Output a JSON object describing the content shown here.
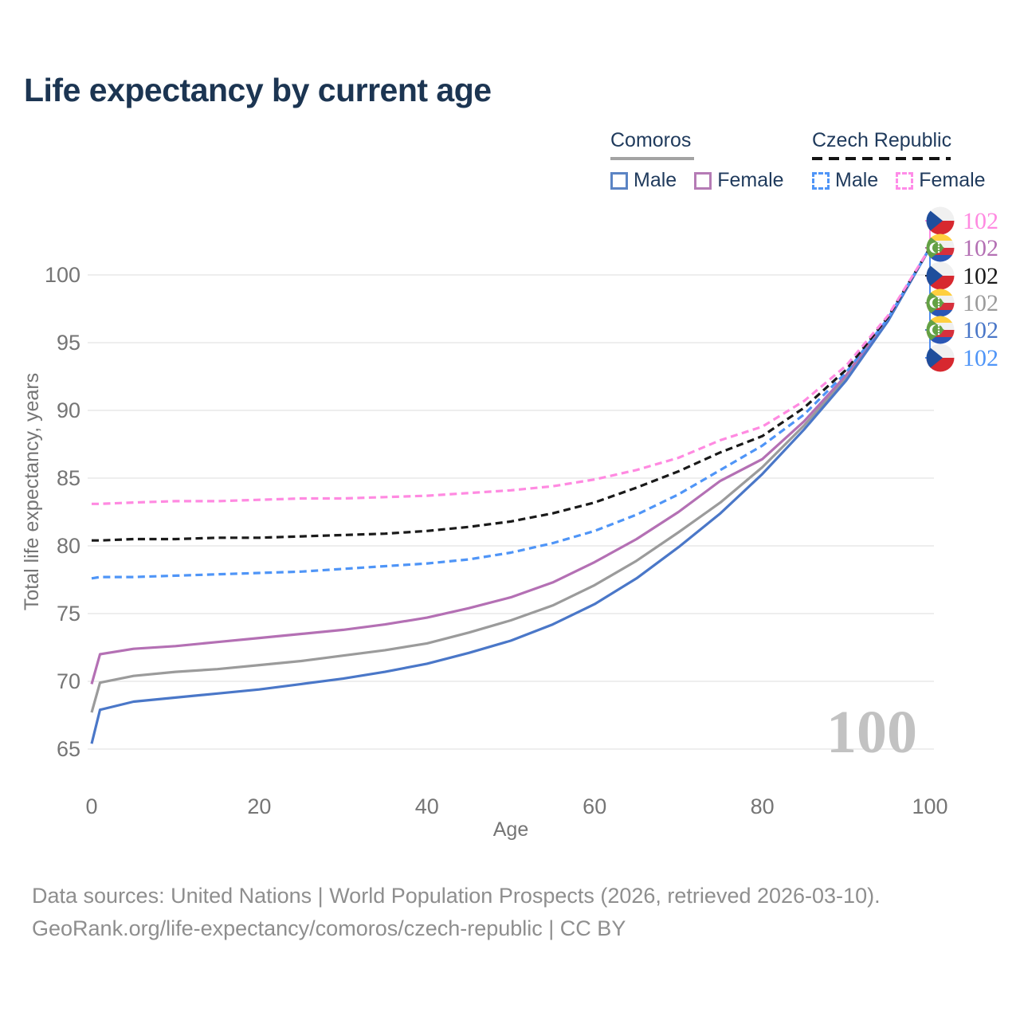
{
  "page": {
    "title": "Life expectancy by current age"
  },
  "legend": {
    "groups": [
      {
        "id": "comoros",
        "title": "Comoros",
        "underline_style": "solid",
        "underline_color": "#a3a3a3",
        "items": [
          {
            "label": "Male",
            "box_color": "#5b84c4",
            "box_style": "solid"
          },
          {
            "label": "Female",
            "box_color": "#b57bb5",
            "box_style": "solid"
          }
        ]
      },
      {
        "id": "czech-republic",
        "title": "Czech Republic",
        "underline_style": "dashed",
        "underline_color": "#141414",
        "items": [
          {
            "label": "Male",
            "box_color": "#4f95f7",
            "box_style": "dashed"
          },
          {
            "label": "Female",
            "box_color": "#ff8ce8",
            "box_style": "dashed"
          }
        ]
      }
    ]
  },
  "chart_data": {
    "type": "line",
    "title": "Life expectancy by current age",
    "xlabel": "Age",
    "ylabel": "Total life expectancy, years",
    "xlim": [
      0,
      100
    ],
    "ylim": [
      64,
      103
    ],
    "x_ticks": [
      0,
      20,
      40,
      60,
      80,
      100
    ],
    "y_ticks": [
      65,
      70,
      75,
      80,
      85,
      90,
      95,
      100
    ],
    "grid": true,
    "ages": [
      0,
      1,
      5,
      10,
      15,
      20,
      25,
      30,
      35,
      40,
      45,
      50,
      55,
      60,
      65,
      70,
      75,
      80,
      85,
      90,
      95,
      100
    ],
    "series": [
      {
        "id": "comoros-total",
        "name": "Comoros",
        "country": "Comoros",
        "sex": "total",
        "color": "#9b9b9b",
        "line_style": "solid",
        "values": [
          67.7,
          69.9,
          70.4,
          70.7,
          70.9,
          71.2,
          71.5,
          71.9,
          72.3,
          72.8,
          73.6,
          74.5,
          75.6,
          77.1,
          78.9,
          81.0,
          83.2,
          85.8,
          88.9,
          92.4,
          96.7,
          102
        ]
      },
      {
        "id": "comoros-female",
        "name": "Comoros Female",
        "country": "Comoros",
        "sex": "female",
        "color": "#b470b4",
        "line_style": "solid",
        "values": [
          69.8,
          72.0,
          72.4,
          72.6,
          72.9,
          73.2,
          73.5,
          73.8,
          74.2,
          74.7,
          75.4,
          76.2,
          77.3,
          78.8,
          80.5,
          82.5,
          84.8,
          86.4,
          89.2,
          92.6,
          96.8,
          102
        ]
      },
      {
        "id": "comoros-male",
        "name": "Comoros Male",
        "country": "Comoros",
        "sex": "male",
        "color": "#4a77c8",
        "line_style": "solid",
        "values": [
          65.4,
          67.9,
          68.5,
          68.8,
          69.1,
          69.4,
          69.8,
          70.2,
          70.7,
          71.3,
          72.1,
          73.0,
          74.2,
          75.7,
          77.6,
          79.9,
          82.4,
          85.3,
          88.6,
          92.2,
          96.6,
          102
        ]
      },
      {
        "id": "czech-male",
        "name": "Czech Republic Male",
        "country": "Czech Republic",
        "sex": "male",
        "color": "#4f95f7",
        "line_style": "dashed",
        "values": [
          77.6,
          77.7,
          77.7,
          77.8,
          77.9,
          78.0,
          78.1,
          78.3,
          78.5,
          78.7,
          79.0,
          79.5,
          80.2,
          81.1,
          82.3,
          83.8,
          85.6,
          87.4,
          89.7,
          92.8,
          96.8,
          102
        ]
      },
      {
        "id": "czech-total",
        "name": "Czech Republic",
        "country": "Czech Republic",
        "sex": "total",
        "color": "#1a1a1a",
        "line_style": "dashed",
        "values": [
          80.4,
          80.4,
          80.5,
          80.5,
          80.6,
          80.6,
          80.7,
          80.8,
          80.9,
          81.1,
          81.4,
          81.8,
          82.4,
          83.2,
          84.3,
          85.5,
          86.9,
          88.1,
          90.2,
          93.0,
          96.9,
          102
        ]
      },
      {
        "id": "czech-female",
        "name": "Czech Republic Female",
        "country": "Czech Republic",
        "sex": "female",
        "color": "#ff8ae1",
        "line_style": "dashed",
        "values": [
          83.1,
          83.1,
          83.2,
          83.3,
          83.3,
          83.4,
          83.5,
          83.5,
          83.6,
          83.7,
          83.9,
          84.1,
          84.4,
          84.9,
          85.6,
          86.5,
          87.8,
          88.8,
          90.7,
          93.3,
          97.0,
          102
        ]
      }
    ],
    "end_labels": [
      {
        "flag_icon": "czech-republic-flag-icon",
        "value": "102",
        "color": "#ff8ae1"
      },
      {
        "flag_icon": "comoros-flag-icon",
        "value": "102",
        "color": "#b470b4"
      },
      {
        "flag_icon": "czech-republic-flag-icon",
        "value": "102",
        "color": "#1a1a1a"
      },
      {
        "flag_icon": "comoros-flag-icon",
        "value": "102",
        "color": "#9b9b9b"
      },
      {
        "flag_icon": "comoros-flag-icon",
        "value": "102",
        "color": "#4a77c8"
      },
      {
        "flag_icon": "czech-republic-flag-icon",
        "value": "102",
        "color": "#4f95f7"
      }
    ],
    "watermark_age": "100",
    "legend_position": "top-right"
  },
  "footer": {
    "line1": "Data sources: United Nations | World Population Prospects (2026, retrieved 2026-03-10).",
    "line2": "GeoRank.org/life-expectancy/comoros/czech-republic | CC BY"
  }
}
